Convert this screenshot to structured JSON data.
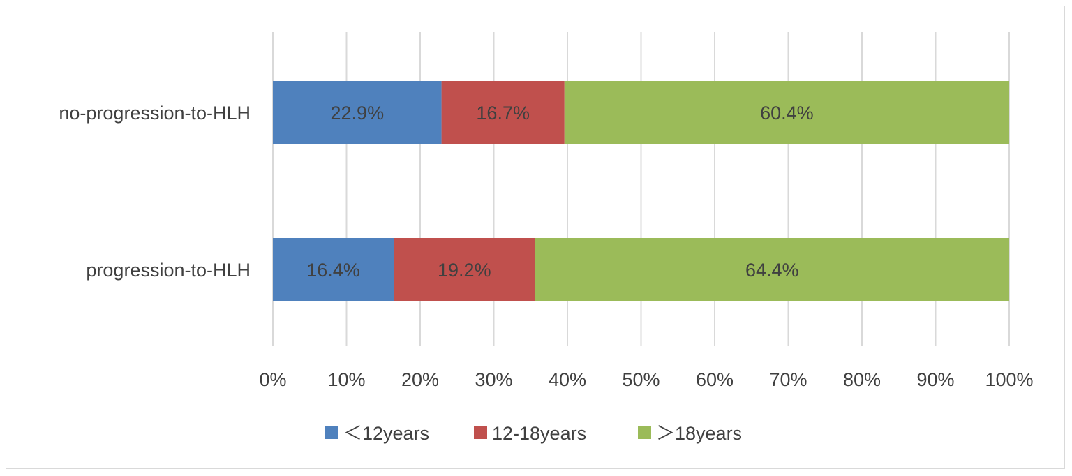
{
  "chart_data": {
    "type": "bar",
    "orientation": "horizontal",
    "stacked": "100%",
    "categories": [
      "no-progression-to-HLH",
      "progression-to-HLH"
    ],
    "series": [
      {
        "name": "＜12years",
        "values": [
          22.9,
          16.4
        ],
        "labels": [
          "22.9%",
          "16.4%"
        ],
        "color": "#4f81bd"
      },
      {
        "name": "12-18years",
        "values": [
          16.7,
          19.2
        ],
        "labels": [
          "16.7%",
          "19.2%"
        ],
        "color": "#c0504d"
      },
      {
        "name": "＞18years",
        "values": [
          60.4,
          64.4
        ],
        "labels": [
          "60.4%",
          "64.4%"
        ],
        "color": "#9bbb59"
      }
    ],
    "xlim": [
      0,
      100
    ],
    "xticks": [
      "0%",
      "10%",
      "20%",
      "30%",
      "40%",
      "50%",
      "60%",
      "70%",
      "80%",
      "90%",
      "100%"
    ],
    "grid": true,
    "legend_position": "bottom",
    "title": "",
    "xlabel": "",
    "ylabel": ""
  }
}
